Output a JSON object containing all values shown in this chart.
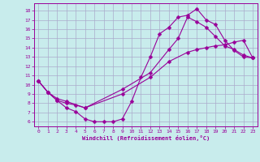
{
  "xlabel": "Windchill (Refroidissement éolien,°C)",
  "bg_color": "#c8ecec",
  "line_color": "#990099",
  "grid_color": "#aaaacc",
  "xlim": [
    -0.5,
    23.5
  ],
  "ylim": [
    5.5,
    18.8
  ],
  "xticks": [
    0,
    1,
    2,
    3,
    4,
    5,
    6,
    7,
    8,
    9,
    10,
    11,
    12,
    13,
    14,
    15,
    16,
    17,
    18,
    19,
    20,
    21,
    22,
    23
  ],
  "yticks": [
    6,
    7,
    8,
    9,
    10,
    11,
    12,
    13,
    14,
    15,
    16,
    17,
    18
  ],
  "line1_x": [
    0,
    1,
    2,
    3,
    4,
    5,
    6,
    7,
    8,
    9,
    10,
    11,
    12,
    13,
    14,
    15,
    16,
    17,
    18,
    19,
    20,
    21,
    22,
    23
  ],
  "line1_y": [
    10.4,
    9.2,
    8.3,
    7.5,
    7.1,
    6.3,
    6.0,
    6.0,
    6.0,
    6.3,
    8.2,
    10.8,
    13.0,
    15.5,
    16.2,
    17.3,
    17.5,
    18.2,
    17.0,
    16.5,
    14.8,
    13.7,
    13.0,
    12.9
  ],
  "line2_x": [
    0,
    1,
    2,
    3,
    4,
    5,
    9,
    12,
    14,
    15,
    16,
    17,
    18,
    19,
    20,
    21,
    22,
    23
  ],
  "line2_y": [
    10.4,
    9.2,
    8.3,
    8.0,
    7.8,
    7.5,
    9.5,
    11.3,
    13.8,
    15.0,
    17.3,
    16.8,
    16.2,
    15.2,
    14.2,
    13.8,
    13.2,
    12.9
  ],
  "line3_x": [
    0,
    1,
    2,
    3,
    5,
    9,
    12,
    14,
    16,
    17,
    18,
    19,
    20,
    21,
    22,
    23
  ],
  "line3_y": [
    10.4,
    9.2,
    8.5,
    8.2,
    7.5,
    9.0,
    10.8,
    12.5,
    13.5,
    13.8,
    14.0,
    14.2,
    14.3,
    14.6,
    14.8,
    12.9
  ]
}
